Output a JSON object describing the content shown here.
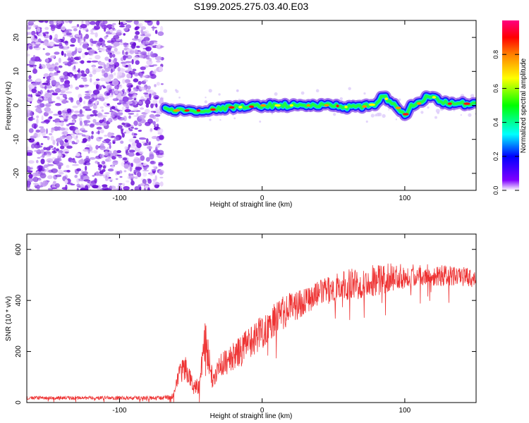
{
  "title": "S199.2025.275.03.40.E03",
  "chart_data": [
    {
      "type": "heatmap",
      "xlabel": "Height of straight line (km)",
      "ylabel": "Frequency (Hz)",
      "xlim": [
        -165,
        150
      ],
      "ylim": [
        -25,
        25
      ],
      "x_ticks": [
        -100,
        0,
        100
      ],
      "y_ticks": [
        -20,
        -10,
        0,
        10,
        20
      ],
      "colorbar": {
        "label": "Normalized spectral amplitude",
        "range": [
          0,
          1
        ],
        "ticks": [
          "0.0",
          "0.2",
          "0.4",
          "0.6",
          "0.8"
        ],
        "colors": [
          "#ffffff",
          "#7f00ff",
          "#0000ff",
          "#00ffff",
          "#00ff00",
          "#ffff00",
          "#ff8000",
          "#ff0000",
          "#ff0080"
        ]
      },
      "noise_region_x": [
        -165,
        -70
      ],
      "ridge": {
        "x": [
          -68,
          -60,
          -50,
          -40,
          -30,
          -20,
          -10,
          0,
          10,
          20,
          30,
          40,
          50,
          60,
          70,
          80,
          85,
          90,
          95,
          100,
          105,
          110,
          115,
          120,
          130,
          140,
          150
        ],
        "freq": [
          -1.0,
          -1.5,
          -1.5,
          -1.5,
          -1.0,
          -0.5,
          -0.5,
          0.0,
          0.0,
          0.0,
          0.0,
          0.0,
          0.0,
          -0.5,
          -0.5,
          0.5,
          3.0,
          0.5,
          -0.5,
          -3.0,
          0.0,
          0.5,
          2.5,
          2.5,
          0.5,
          0.5,
          0.5
        ]
      }
    },
    {
      "type": "line",
      "xlabel": "Height of straight line (km)",
      "ylabel": "SNR (10 * v/v)",
      "xlim": [
        -165,
        150
      ],
      "ylim": [
        0,
        660
      ],
      "x_ticks": [
        -100,
        0,
        100
      ],
      "y_ticks": [
        0,
        200,
        400,
        600
      ],
      "color": "#ee3333",
      "series_envelope": {
        "x": [
          -165,
          -120,
          -70,
          -62,
          -58,
          -54,
          -48,
          -44,
          -40,
          -35,
          -30,
          -20,
          -10,
          0,
          10,
          20,
          30,
          40,
          50,
          60,
          70,
          80,
          90,
          100,
          110,
          120,
          130,
          140,
          150
        ],
        "mean": [
          18,
          18,
          18,
          25,
          110,
          140,
          60,
          70,
          250,
          100,
          140,
          180,
          230,
          280,
          330,
          370,
          400,
          430,
          445,
          460,
          470,
          480,
          490,
          495,
          500,
          500,
          495,
          490,
          490
        ],
        "spread": [
          10,
          10,
          12,
          20,
          60,
          70,
          40,
          50,
          120,
          60,
          70,
          80,
          90,
          100,
          100,
          90,
          80,
          70,
          80,
          90,
          90,
          90,
          80,
          70,
          60,
          60,
          60,
          60,
          50
        ]
      }
    }
  ]
}
